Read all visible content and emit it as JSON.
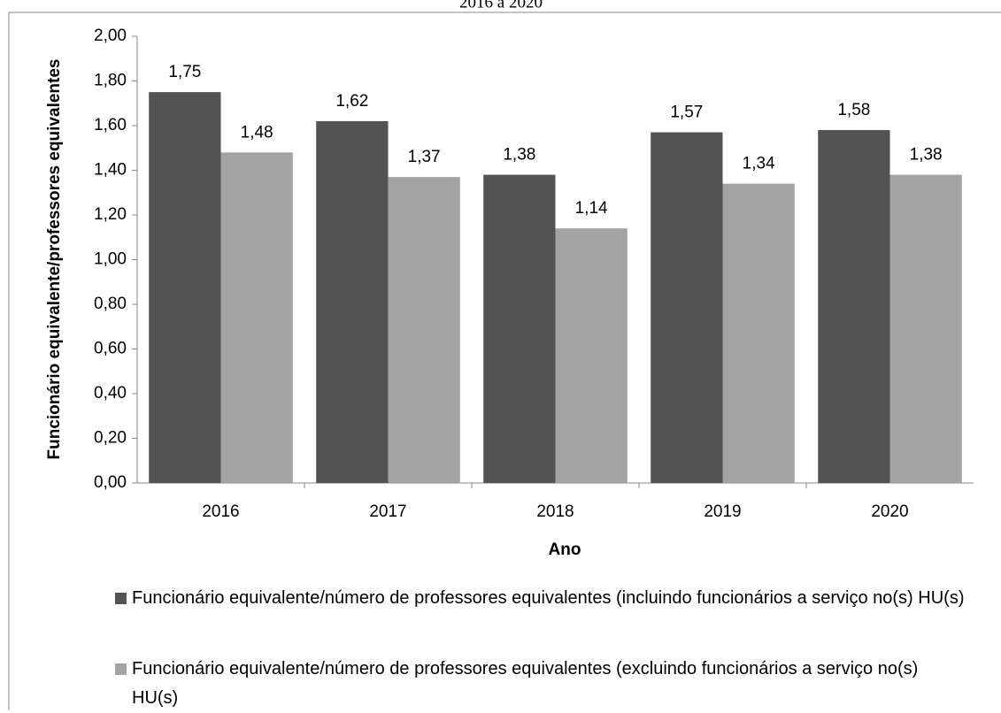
{
  "chart_data": {
    "type": "bar",
    "title": "2016 a 2020",
    "x_label": "Ano",
    "y_label": "Funcionário equivalente/professores equivalentes",
    "categories": [
      "2016",
      "2017",
      "2018",
      "2019",
      "2020"
    ],
    "series": [
      {
        "name": "Funcionário equivalente/número de professores equivalentes (incluindo funcionários a serviço no(s) HU(s)",
        "color": "#535353",
        "values": [
          1.75,
          1.62,
          1.38,
          1.57,
          1.58
        ],
        "value_labels": [
          "1,75",
          "1,62",
          "1,38",
          "1,57",
          "1,58"
        ]
      },
      {
        "name": "Funcionário equivalente/número de professores equivalentes (excluindo funcionários a serviço no(s) HU(s)",
        "color": "#a3a3a3",
        "values": [
          1.48,
          1.37,
          1.14,
          1.34,
          1.38
        ],
        "value_labels": [
          "1,48",
          "1,37",
          "1,14",
          "1,34",
          "1,38"
        ]
      }
    ],
    "ylim": [
      0,
      2
    ],
    "yticks": [
      {
        "value": 0,
        "label": "0,00"
      },
      {
        "value": 0.2,
        "label": "0,20"
      },
      {
        "value": 0.4,
        "label": "0,40"
      },
      {
        "value": 0.6,
        "label": "0,60"
      },
      {
        "value": 0.8,
        "label": "0,80"
      },
      {
        "value": 1,
        "label": "1,00"
      },
      {
        "value": 1.2,
        "label": "1,20"
      },
      {
        "value": 1.4,
        "label": "1,40"
      },
      {
        "value": 1.6,
        "label": "1,60"
      },
      {
        "value": 1.8,
        "label": "1,80"
      },
      {
        "value": 2,
        "label": "2,00"
      }
    ],
    "grid": false,
    "legend": "bottom"
  }
}
